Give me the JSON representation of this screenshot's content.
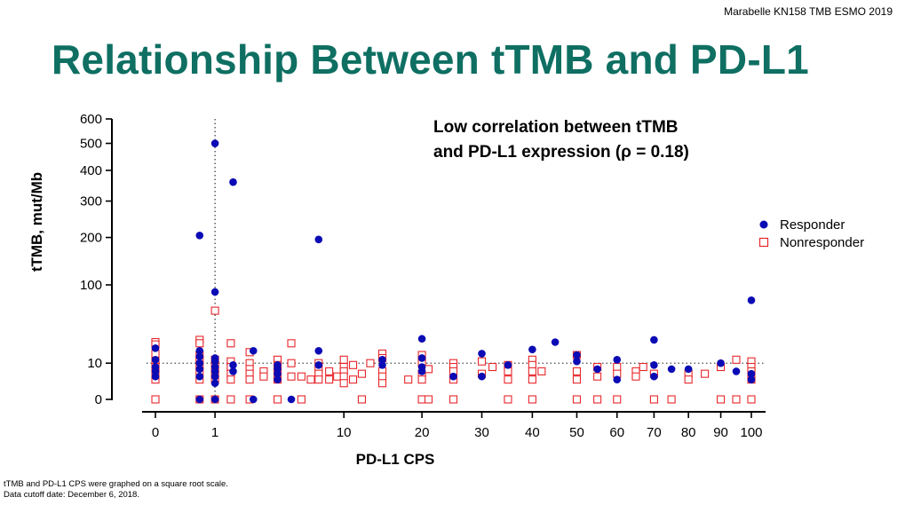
{
  "citation": "Marabelle  KN158  TMB  ESMO 2019",
  "title": "Relationship Between tTMB and PD-L1",
  "annotation": {
    "line1": "Low correlation  between  tTMB",
    "line2": "and PD-L1 expression  (ρ = 0.18)"
  },
  "footnotes": {
    "line1": "tTMB  and  PD-L1  CPS   were graphed on a square root scale.",
    "line2": "Data cutoff date:  December  6, 2018."
  },
  "colors": {
    "responder": "#0b0bb5",
    "nonresponder": "#e8262a",
    "title": "#0e6f62"
  },
  "chart_data": {
    "type": "scatter",
    "xlabel": "PD-L1 CPS",
    "ylabel": "tTMB, mut/Mb",
    "xscale": "sqrt",
    "yscale": "sqrt",
    "xlim": [
      0,
      100
    ],
    "ylim": [
      0,
      600
    ],
    "x_ticks": [
      0,
      1,
      10,
      20,
      30,
      40,
      50,
      60,
      70,
      80,
      90,
      100
    ],
    "y_ticks": [
      0,
      10,
      100,
      200,
      300,
      400,
      500,
      600
    ],
    "reference_lines": {
      "x": 1,
      "y": 10
    },
    "legend": [
      "Responder",
      "Nonresponder"
    ],
    "legend_position": "right",
    "series": [
      {
        "name": "Responder",
        "marker": "filled-circle",
        "points": [
          [
            0,
            20
          ],
          [
            0,
            12
          ],
          [
            0,
            8
          ],
          [
            0,
            6
          ],
          [
            0,
            4
          ],
          [
            0.55,
            205
          ],
          [
            0.55,
            18
          ],
          [
            0.55,
            14
          ],
          [
            0.55,
            10
          ],
          [
            0.55,
            7
          ],
          [
            0.55,
            4
          ],
          [
            0.55,
            0
          ],
          [
            1,
            500
          ],
          [
            1,
            88
          ],
          [
            1,
            13
          ],
          [
            1,
            11
          ],
          [
            1,
            8
          ],
          [
            1,
            6
          ],
          [
            1,
            4
          ],
          [
            1,
            2
          ],
          [
            1,
            0
          ],
          [
            1.7,
            360
          ],
          [
            1.7,
            9
          ],
          [
            1.7,
            6
          ],
          [
            2.7,
            18
          ],
          [
            2.7,
            0
          ],
          [
            4.2,
            9
          ],
          [
            4.2,
            7
          ],
          [
            4.2,
            5
          ],
          [
            4.2,
            3
          ],
          [
            5.2,
            0
          ],
          [
            7.5,
            195
          ],
          [
            7.5,
            18
          ],
          [
            7.5,
            9
          ],
          [
            14.5,
            12
          ],
          [
            14.5,
            9
          ],
          [
            20,
            28
          ],
          [
            20,
            13
          ],
          [
            20,
            8
          ],
          [
            20,
            6
          ],
          [
            25,
            4
          ],
          [
            30,
            16
          ],
          [
            30,
            4
          ],
          [
            35,
            9
          ],
          [
            40,
            19
          ],
          [
            45,
            25
          ],
          [
            50,
            15
          ],
          [
            50,
            11
          ],
          [
            55,
            7
          ],
          [
            60,
            12
          ],
          [
            60,
            3
          ],
          [
            70,
            27
          ],
          [
            70,
            9
          ],
          [
            70,
            4
          ],
          [
            75,
            7
          ],
          [
            80,
            7
          ],
          [
            90,
            10
          ],
          [
            95,
            6
          ],
          [
            100,
            75
          ],
          [
            100,
            5
          ],
          [
            100,
            3
          ]
        ]
      },
      {
        "name": "Nonresponder",
        "marker": "open-square",
        "points": [
          [
            0,
            25
          ],
          [
            0,
            23
          ],
          [
            0,
            16
          ],
          [
            0,
            11
          ],
          [
            0,
            8
          ],
          [
            0,
            6
          ],
          [
            0,
            3
          ],
          [
            0,
            0
          ],
          [
            0.55,
            27
          ],
          [
            0.55,
            24
          ],
          [
            0.55,
            15
          ],
          [
            0.55,
            12
          ],
          [
            0.55,
            9
          ],
          [
            0.55,
            6
          ],
          [
            0.55,
            3
          ],
          [
            0.55,
            0
          ],
          [
            1,
            60
          ],
          [
            1,
            12
          ],
          [
            1,
            9
          ],
          [
            1,
            7
          ],
          [
            1,
            5
          ],
          [
            1,
            3
          ],
          [
            1,
            0
          ],
          [
            1.6,
            24
          ],
          [
            1.6,
            11
          ],
          [
            1.6,
            8
          ],
          [
            1.6,
            5
          ],
          [
            1.6,
            3
          ],
          [
            1.6,
            0
          ],
          [
            2.5,
            17
          ],
          [
            2.5,
            10
          ],
          [
            2.5,
            7
          ],
          [
            2.5,
            5
          ],
          [
            2.5,
            3
          ],
          [
            2.5,
            0
          ],
          [
            3.3,
            6
          ],
          [
            3.3,
            4
          ],
          [
            4.2,
            12
          ],
          [
            4.2,
            9
          ],
          [
            4.2,
            6
          ],
          [
            4.2,
            3
          ],
          [
            4.2,
            0
          ],
          [
            5.2,
            24
          ],
          [
            5.2,
            10
          ],
          [
            5.2,
            4
          ],
          [
            6,
            4
          ],
          [
            6,
            0
          ],
          [
            6.8,
            3
          ],
          [
            7.5,
            10
          ],
          [
            7.5,
            7
          ],
          [
            7.5,
            5
          ],
          [
            7.5,
            3
          ],
          [
            8.5,
            6
          ],
          [
            8.5,
            3
          ],
          [
            9.3,
            4
          ],
          [
            10,
            12
          ],
          [
            10,
            8
          ],
          [
            10,
            6
          ],
          [
            10,
            4
          ],
          [
            10,
            2
          ],
          [
            11,
            9
          ],
          [
            11,
            3
          ],
          [
            12,
            5
          ],
          [
            12,
            0
          ],
          [
            13,
            10
          ],
          [
            14.5,
            16
          ],
          [
            14.5,
            13
          ],
          [
            14.5,
            6
          ],
          [
            14.5,
            4
          ],
          [
            14.5,
            2
          ],
          [
            18,
            3
          ],
          [
            20,
            15
          ],
          [
            20,
            10
          ],
          [
            20,
            5
          ],
          [
            20,
            3
          ],
          [
            20,
            0
          ],
          [
            21,
            7
          ],
          [
            21,
            0
          ],
          [
            25,
            10
          ],
          [
            25,
            8
          ],
          [
            25,
            6
          ],
          [
            25,
            3
          ],
          [
            25,
            0
          ],
          [
            30,
            11
          ],
          [
            30,
            5
          ],
          [
            32,
            8
          ],
          [
            35,
            9
          ],
          [
            35,
            6
          ],
          [
            35,
            3
          ],
          [
            35,
            0
          ],
          [
            40,
            12
          ],
          [
            40,
            9
          ],
          [
            40,
            6
          ],
          [
            40,
            3
          ],
          [
            40,
            0
          ],
          [
            42,
            6
          ],
          [
            50,
            15
          ],
          [
            50,
            6
          ],
          [
            50,
            3
          ],
          [
            50,
            0
          ],
          [
            55,
            8
          ],
          [
            55,
            4
          ],
          [
            55,
            0
          ],
          [
            60,
            8
          ],
          [
            60,
            5
          ],
          [
            60,
            0
          ],
          [
            65,
            6
          ],
          [
            65,
            4
          ],
          [
            67,
            8
          ],
          [
            70,
            5
          ],
          [
            70,
            0
          ],
          [
            75,
            0
          ],
          [
            80,
            5
          ],
          [
            80,
            3
          ],
          [
            85,
            5
          ],
          [
            90,
            8
          ],
          [
            90,
            0
          ],
          [
            95,
            12
          ],
          [
            95,
            0
          ],
          [
            100,
            11
          ],
          [
            100,
            8
          ],
          [
            100,
            6
          ],
          [
            100,
            3
          ],
          [
            100,
            0
          ]
        ]
      }
    ]
  }
}
